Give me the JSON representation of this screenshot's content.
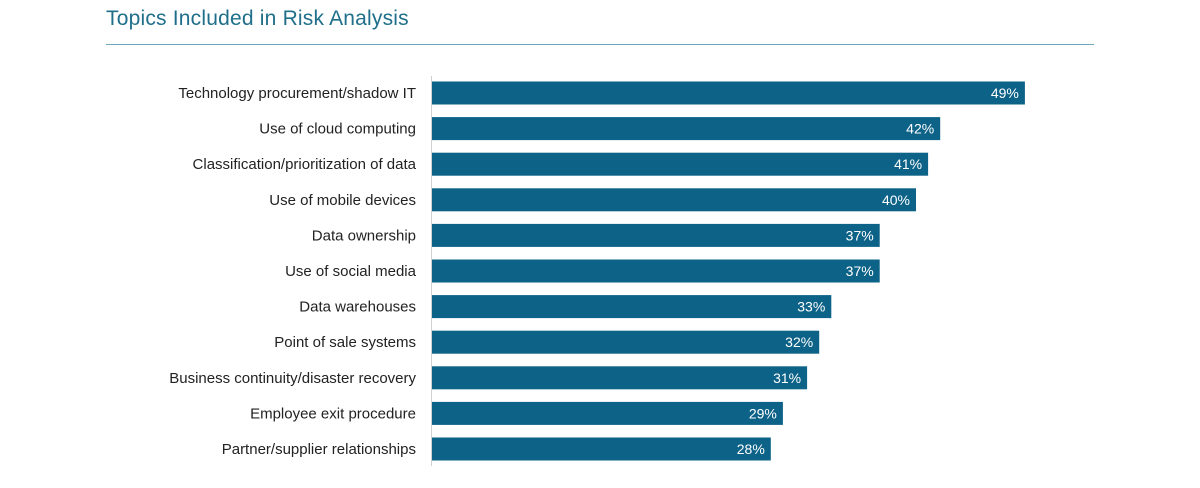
{
  "chart_data": {
    "type": "bar",
    "orientation": "horizontal",
    "title": "Topics Included in Risk Analysis",
    "xlabel": "",
    "ylabel": "",
    "xlim": [
      0,
      50
    ],
    "grid": false,
    "bar_color": "#0d6288",
    "title_color": "#1f6f8b",
    "categories": [
      "Technology procurement/shadow IT",
      "Use of cloud computing",
      "Classification/prioritization of data",
      "Use of mobile devices",
      "Data ownership",
      "Use of social media",
      "Data warehouses",
      "Point of sale systems",
      "Business continuity/disaster recovery",
      "Employee exit procedure",
      "Partner/supplier relationships"
    ],
    "values": [
      49,
      42,
      41,
      40,
      37,
      37,
      33,
      32,
      31,
      29,
      28
    ],
    "value_labels": [
      "49%",
      "42%",
      "41%",
      "40%",
      "37%",
      "37%",
      "33%",
      "32%",
      "31%",
      "29%",
      "28%"
    ]
  }
}
